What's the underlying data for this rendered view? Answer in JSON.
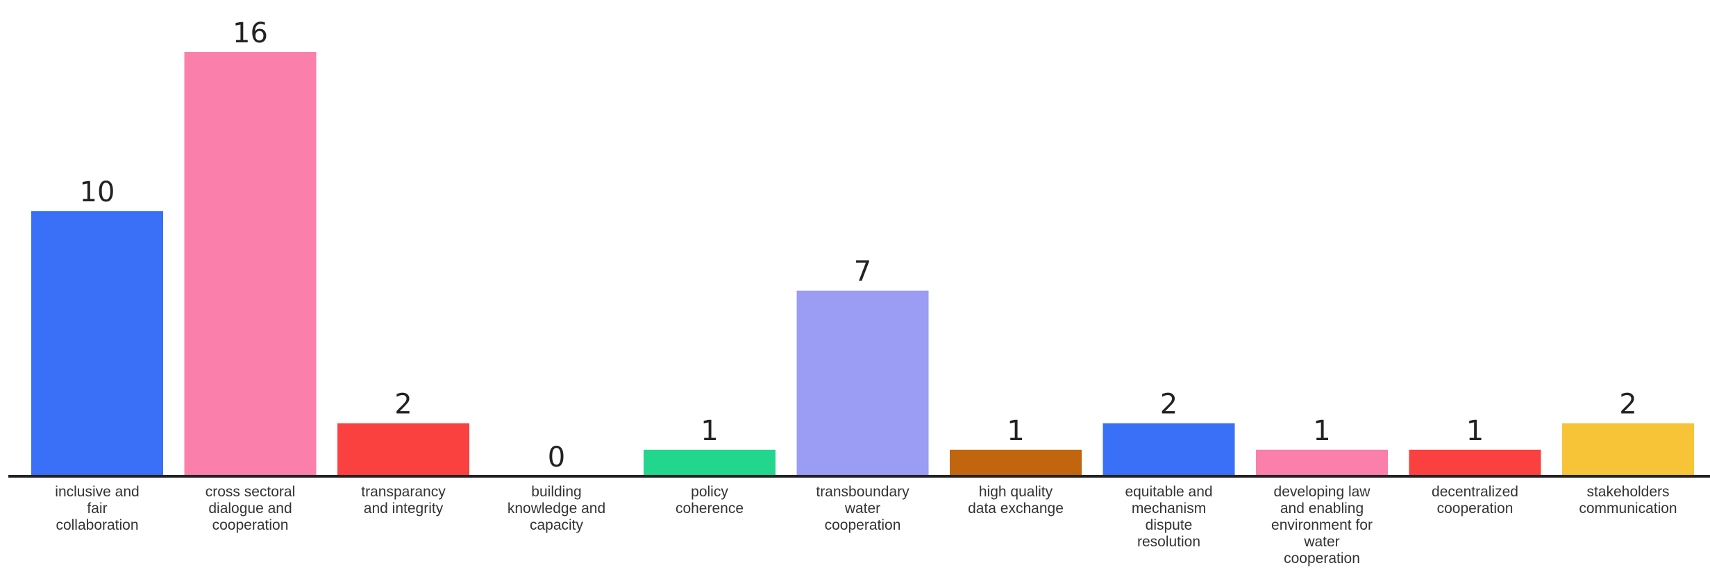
{
  "chart_data": {
    "type": "bar",
    "title": "",
    "xlabel": "",
    "ylabel": "",
    "ylim": [
      0,
      16
    ],
    "grid": false,
    "legend": "none",
    "bars": [
      {
        "label": [
          "inclusive and",
          "fair",
          "collaboration"
        ],
        "value": 10,
        "color": "#3a6ff7"
      },
      {
        "label": [
          "cross sectoral",
          "dialogue and",
          "cooperation"
        ],
        "value": 16,
        "color": "#fb7fab"
      },
      {
        "label": [
          "transparancy",
          "and integrity"
        ],
        "value": 2,
        "color": "#fb4040"
      },
      {
        "label": [
          "building",
          "knowledge and",
          "capacity"
        ],
        "value": 0,
        "color": "#3a6ff7"
      },
      {
        "label": [
          "policy",
          "coherence"
        ],
        "value": 1,
        "color": "#22d68e"
      },
      {
        "label": [
          "transboundary",
          "water",
          "cooperation"
        ],
        "value": 7,
        "color": "#9a9df3"
      },
      {
        "label": [
          "high quality",
          "data exchange"
        ],
        "value": 1,
        "color": "#c2650f"
      },
      {
        "label": [
          "equitable and",
          "mechanism",
          "dispute",
          "resolution"
        ],
        "value": 2,
        "color": "#3a6ff7"
      },
      {
        "label": [
          "developing law",
          "and enabling",
          "environment for",
          "water",
          "cooperation"
        ],
        "value": 1,
        "color": "#fb7fab"
      },
      {
        "label": [
          "decentralized",
          "cooperation"
        ],
        "value": 1,
        "color": "#fb4040"
      },
      {
        "label": [
          "stakeholders",
          "communication"
        ],
        "value": 2,
        "color": "#f7c437"
      }
    ]
  }
}
